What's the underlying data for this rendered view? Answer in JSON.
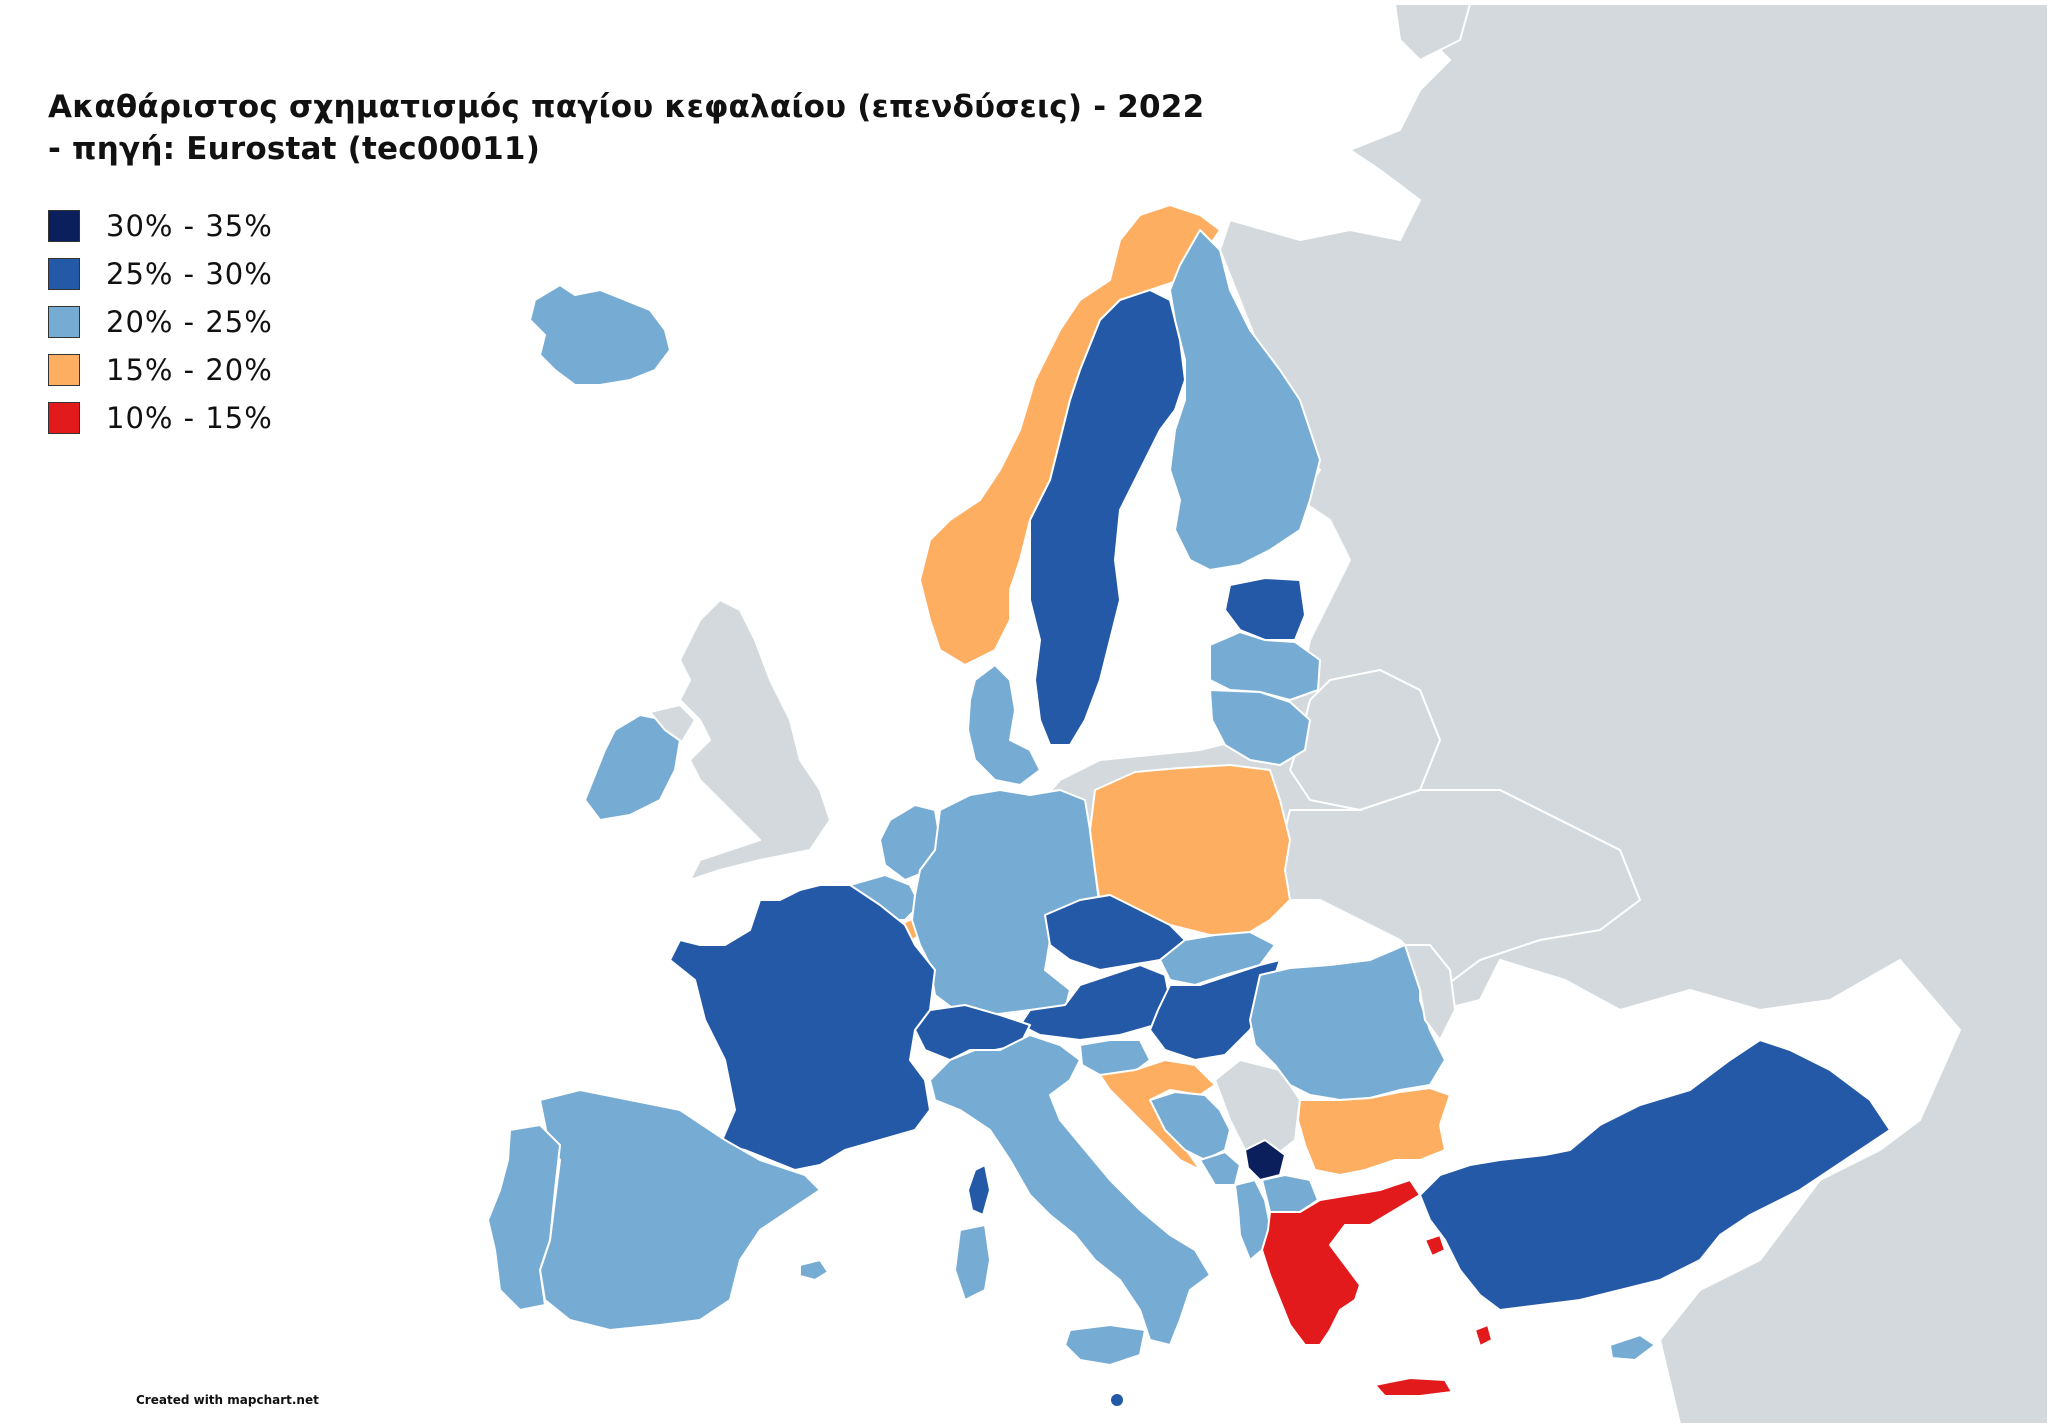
{
  "title_line1": "Ακαθάριστος σχηματισμός παγίου κεφαλαίου (επενδύσεις) - 2022",
  "title_line2": "- πηγή: Eurostat (tec00011)",
  "legend": [
    {
      "label": "30% - 35%",
      "color": "#0b1f5c"
    },
    {
      "label": "25% - 30%",
      "color": "#2359a6"
    },
    {
      "label": "20% - 25%",
      "color": "#76acd3"
    },
    {
      "label": "15% - 20%",
      "color": "#fdae61"
    },
    {
      "label": "10% - 15%",
      "color": "#e31a1c"
    }
  ],
  "colors": {
    "no_data": "#d3d9dd",
    "sea": "#ffffff",
    "border": "#ffffff"
  },
  "credit": "Created with mapchart.net"
}
